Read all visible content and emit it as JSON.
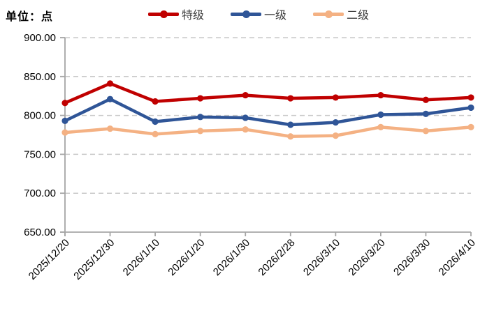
{
  "header": {
    "unit_label": "单位：点"
  },
  "chart_data": {
    "type": "line",
    "title": "",
    "xlabel": "",
    "ylabel": "单位：点",
    "categories": [
      "2025/12/20",
      "2025/12/30",
      "2026/1/10",
      "2026/1/20",
      "2026/1/30",
      "2026/2/28",
      "2026/3/10",
      "2026/3/20",
      "2026/3/30",
      "2026/4/10"
    ],
    "series": [
      {
        "name": "特级",
        "color": "#c00000",
        "values": [
          816,
          841,
          818,
          822,
          826,
          822,
          823,
          826,
          820,
          823
        ]
      },
      {
        "name": "一级",
        "color": "#2f5597",
        "values": [
          793,
          821,
          792,
          798,
          797,
          788,
          791,
          801,
          802,
          810
        ]
      },
      {
        "name": "二级",
        "color": "#f4b183",
        "values": [
          778,
          783,
          776,
          780,
          782,
          773,
          774,
          785,
          780,
          785
        ]
      }
    ],
    "ylim": [
      650,
      900
    ],
    "ytick_step": 50,
    "ytick_labels": [
      "650.00",
      "700.00",
      "750.00",
      "800.00",
      "850.00",
      "900.00"
    ],
    "grid": "horizontal-dashed",
    "legend_position": "top-center",
    "axis_color": "#a6a6a6",
    "grid_color": "#c8c8c8",
    "marker": "circle",
    "x_label_rotation_deg": -45
  }
}
